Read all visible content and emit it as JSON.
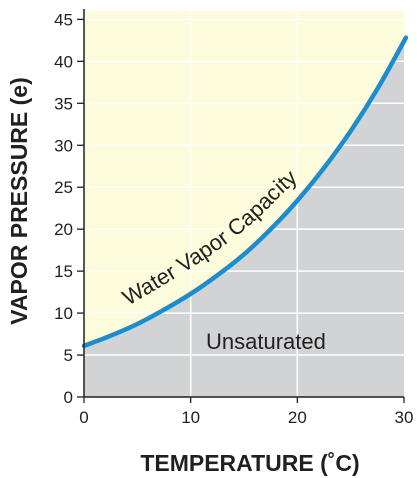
{
  "chart_data": {
    "type": "line",
    "xlabel": "TEMPERATURE (˚C)",
    "ylabel": "VAPOR PRESSURE (e)",
    "xlim": [
      0,
      30
    ],
    "ylim": [
      0,
      46
    ],
    "x_ticks": [
      "0",
      "10",
      "20",
      "30"
    ],
    "y_ticks": [
      "0",
      "5",
      "10",
      "15",
      "20",
      "25",
      "30",
      "35",
      "40",
      "45"
    ],
    "grid": true,
    "series": [
      {
        "name": "Water Vapor Capacity",
        "x": [
          0,
          2.5,
          5,
          7.5,
          10,
          12.5,
          15,
          17.5,
          20,
          22.5,
          25,
          27.5,
          30
        ],
        "y": [
          6.1,
          7.3,
          8.7,
          10.4,
          12.3,
          14.5,
          17.0,
          20.0,
          23.4,
          27.3,
          31.7,
          36.7,
          42.4
        ]
      }
    ],
    "annotations": [
      "Water Vapor Capacity",
      "Unsaturated"
    ],
    "colors": {
      "curve": "#1b8ccf",
      "saturated_region": "#fcfbdc",
      "unsaturated_region": "#d1d3d4",
      "grid": "#ffffff"
    }
  }
}
